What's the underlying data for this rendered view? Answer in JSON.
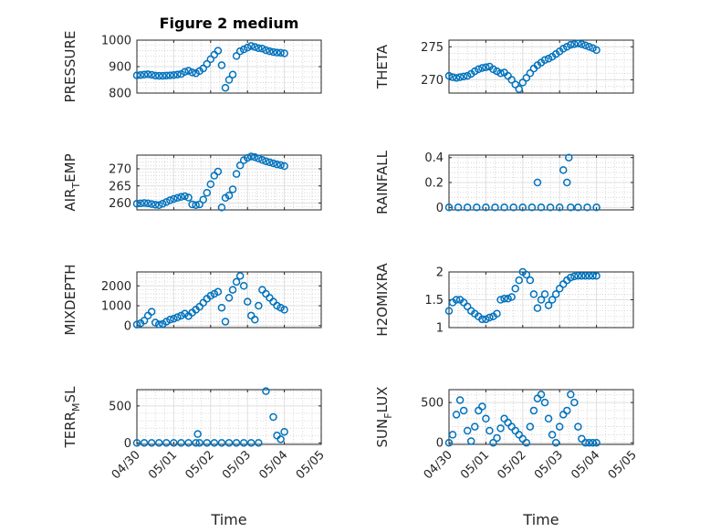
{
  "figure_title": "Figure 2 medium",
  "x_axis_label": "Time",
  "x_ticks": [
    "04/30",
    "05/01",
    "05/02",
    "05/03",
    "05/04",
    "05/05"
  ],
  "marker_color": "#0072BD",
  "chart_data": [
    {
      "type": "scatter",
      "title": "Figure 2 medium",
      "ylabel": "PRESSURE",
      "xlabel": "",
      "xlim": [
        0,
        5
      ],
      "ylim": [
        800,
        1000
      ],
      "yticks": [
        800,
        900,
        1000
      ],
      "grid": true,
      "minor_grid": true,
      "x": [
        0,
        0.1,
        0.2,
        0.3,
        0.4,
        0.5,
        0.6,
        0.7,
        0.8,
        0.9,
        1,
        1.1,
        1.2,
        1.3,
        1.4,
        1.5,
        1.6,
        1.7,
        1.8,
        1.9,
        2,
        2.1,
        2.2,
        2.3,
        2.4,
        2.5,
        2.6,
        2.7,
        2.8,
        2.9,
        3,
        3.1,
        3.2,
        3.3,
        3.4,
        3.5,
        3.6,
        3.7,
        3.8,
        3.9,
        4
      ],
      "y": [
        867,
        868,
        870,
        871,
        869,
        866,
        865,
        865,
        866,
        867,
        868,
        870,
        872,
        880,
        884,
        878,
        875,
        883,
        893,
        910,
        928,
        945,
        960,
        905,
        820,
        850,
        870,
        940,
        958,
        965,
        972,
        978,
        974,
        970,
        968,
        962,
        958,
        955,
        953,
        952,
        950
      ]
    },
    {
      "type": "scatter",
      "title": "",
      "ylabel": "THETA",
      "xlabel": "",
      "xlim": [
        0,
        5
      ],
      "ylim": [
        268,
        276
      ],
      "yticks": [
        270,
        275
      ],
      "grid": true,
      "minor_grid": true,
      "x": [
        0,
        0.1,
        0.2,
        0.3,
        0.4,
        0.5,
        0.6,
        0.7,
        0.8,
        0.9,
        1,
        1.1,
        1.2,
        1.3,
        1.4,
        1.5,
        1.6,
        1.7,
        1.8,
        1.9,
        2,
        2.1,
        2.2,
        2.3,
        2.4,
        2.5,
        2.6,
        2.7,
        2.8,
        2.9,
        3,
        3.1,
        3.2,
        3.3,
        3.4,
        3.5,
        3.6,
        3.7,
        3.8,
        3.9,
        4
      ],
      "y": [
        270.6,
        270.4,
        270.3,
        270.4,
        270.5,
        270.6,
        270.9,
        271.3,
        271.6,
        271.8,
        271.9,
        272.0,
        271.6,
        271.3,
        271.0,
        271.1,
        270.6,
        270.0,
        269.3,
        268.6,
        269.6,
        270.3,
        271.0,
        271.7,
        272.2,
        272.6,
        273.0,
        273.2,
        273.5,
        273.9,
        274.3,
        274.7,
        275.0,
        275.3,
        275.4,
        275.5,
        275.4,
        275.2,
        275.0,
        274.8,
        274.5
      ]
    },
    {
      "type": "scatter",
      "title": "",
      "ylabel": "AIR_TEMP",
      "xlabel": "",
      "xlim": [
        0,
        5
      ],
      "ylim": [
        258,
        274
      ],
      "yticks": [
        260,
        265,
        270
      ],
      "grid": true,
      "minor_grid": true,
      "x": [
        0,
        0.1,
        0.2,
        0.3,
        0.4,
        0.5,
        0.6,
        0.7,
        0.8,
        0.9,
        1,
        1.1,
        1.2,
        1.3,
        1.4,
        1.5,
        1.6,
        1.7,
        1.8,
        1.9,
        2,
        2.1,
        2.2,
        2.3,
        2.4,
        2.5,
        2.6,
        2.7,
        2.8,
        2.9,
        3,
        3.1,
        3.2,
        3.3,
        3.4,
        3.5,
        3.6,
        3.7,
        3.8,
        3.9,
        4
      ],
      "y": [
        259.8,
        259.9,
        260.0,
        259.9,
        259.7,
        259.5,
        259.4,
        259.8,
        260.3,
        260.8,
        261.2,
        261.5,
        261.8,
        262.0,
        261.6,
        259.6,
        259.4,
        259.6,
        261.0,
        263.0,
        265.5,
        268.0,
        269.2,
        258.7,
        261.5,
        262.2,
        264.0,
        268.5,
        271.0,
        272.5,
        273.2,
        273.6,
        273.4,
        273.0,
        272.6,
        272.2,
        271.9,
        271.6,
        271.3,
        271.1,
        270.8
      ]
    },
    {
      "type": "scatter",
      "title": "",
      "ylabel": "RAINFALL",
      "xlabel": "",
      "xlim": [
        0,
        5
      ],
      "ylim": [
        -0.02,
        0.42
      ],
      "yticks": [
        0,
        0.2,
        0.4
      ],
      "grid": true,
      "minor_grid": true,
      "x": [
        0,
        0.25,
        0.5,
        0.75,
        1,
        1.25,
        1.5,
        1.75,
        2,
        2.25,
        2.4,
        2.5,
        2.75,
        3,
        3.1,
        3.2,
        3.25,
        3.3,
        3.5,
        3.75,
        4
      ],
      "y": [
        0,
        0,
        0,
        0,
        0,
        0,
        0,
        0,
        0,
        0,
        0.2,
        0,
        0,
        0,
        0.3,
        0.2,
        0.4,
        0,
        0,
        0,
        0
      ]
    },
    {
      "type": "scatter",
      "title": "",
      "ylabel": "MIXDEPTH",
      "xlabel": "",
      "xlim": [
        0,
        5
      ],
      "ylim": [
        -100,
        2700
      ],
      "yticks": [
        0,
        1000,
        2000
      ],
      "grid": true,
      "minor_grid": true,
      "x": [
        0,
        0.1,
        0.2,
        0.3,
        0.4,
        0.5,
        0.6,
        0.7,
        0.8,
        0.9,
        1,
        1.1,
        1.2,
        1.3,
        1.4,
        1.5,
        1.6,
        1.7,
        1.8,
        1.9,
        2,
        2.1,
        2.2,
        2.3,
        2.4,
        2.5,
        2.6,
        2.7,
        2.8,
        2.9,
        3,
        3.1,
        3.2,
        3.3,
        3.4,
        3.5,
        3.6,
        3.7,
        3.8,
        3.9,
        4
      ],
      "y": [
        50,
        120,
        250,
        500,
        700,
        150,
        60,
        80,
        200,
        300,
        350,
        420,
        500,
        600,
        480,
        650,
        800,
        950,
        1150,
        1350,
        1500,
        1600,
        1700,
        900,
        200,
        1400,
        1800,
        2200,
        2500,
        2000,
        1200,
        500,
        300,
        1000,
        1800,
        1600,
        1400,
        1200,
        1000,
        900,
        800
      ]
    },
    {
      "type": "scatter",
      "title": "",
      "ylabel": "H2OMIXRA",
      "xlabel": "",
      "xlim": [
        0,
        5
      ],
      "ylim": [
        1,
        2
      ],
      "yticks": [
        1,
        1.5,
        2
      ],
      "grid": true,
      "minor_grid": true,
      "x": [
        0,
        0.1,
        0.2,
        0.3,
        0.4,
        0.5,
        0.6,
        0.7,
        0.8,
        0.9,
        1,
        1.1,
        1.2,
        1.3,
        1.4,
        1.5,
        1.6,
        1.7,
        1.8,
        1.9,
        2,
        2.1,
        2.2,
        2.3,
        2.4,
        2.5,
        2.6,
        2.7,
        2.8,
        2.9,
        3,
        3.1,
        3.2,
        3.3,
        3.4,
        3.5,
        3.6,
        3.7,
        3.8,
        3.9,
        4
      ],
      "y": [
        1.3,
        1.45,
        1.5,
        1.5,
        1.45,
        1.38,
        1.3,
        1.25,
        1.2,
        1.15,
        1.15,
        1.18,
        1.2,
        1.25,
        1.5,
        1.52,
        1.52,
        1.55,
        1.7,
        1.85,
        2.0,
        1.95,
        1.85,
        1.6,
        1.35,
        1.5,
        1.6,
        1.4,
        1.5,
        1.6,
        1.7,
        1.78,
        1.85,
        1.9,
        1.92,
        1.93,
        1.93,
        1.93,
        1.93,
        1.93,
        1.93
      ]
    },
    {
      "type": "scatter",
      "title": "",
      "ylabel": "TERR_MSL",
      "xlabel": "Time",
      "xlim": [
        0,
        5
      ],
      "ylim": [
        -20,
        720
      ],
      "yticks": [
        0,
        500
      ],
      "grid": true,
      "minor_grid": true,
      "x": [
        0,
        0.2,
        0.4,
        0.6,
        0.8,
        1,
        1.2,
        1.4,
        1.6,
        1.65,
        1.7,
        1.9,
        2.1,
        2.3,
        2.5,
        2.7,
        2.9,
        3.1,
        3.3,
        3.5,
        3.7,
        3.8,
        3.9,
        4
      ],
      "y": [
        0,
        0,
        0,
        0,
        0,
        0,
        0,
        0,
        0,
        120,
        0,
        0,
        0,
        0,
        0,
        0,
        0,
        0,
        0,
        700,
        350,
        100,
        50,
        150
      ]
    },
    {
      "type": "scatter",
      "title": "",
      "ylabel": "SUN_FLUX",
      "xlabel": "Time",
      "xlim": [
        0,
        5
      ],
      "ylim": [
        -20,
        660
      ],
      "yticks": [
        0,
        500
      ],
      "grid": true,
      "minor_grid": true,
      "x": [
        0,
        0.1,
        0.2,
        0.3,
        0.4,
        0.5,
        0.6,
        0.7,
        0.8,
        0.9,
        1,
        1.1,
        1.2,
        1.3,
        1.4,
        1.5,
        1.6,
        1.7,
        1.8,
        1.9,
        2,
        2.1,
        2.2,
        2.3,
        2.4,
        2.5,
        2.6,
        2.7,
        2.8,
        2.9,
        3,
        3.1,
        3.2,
        3.3,
        3.4,
        3.5,
        3.6,
        3.7,
        3.8,
        3.9,
        4
      ],
      "y": [
        0,
        100,
        350,
        530,
        400,
        150,
        20,
        200,
        400,
        450,
        300,
        150,
        0,
        60,
        180,
        300,
        250,
        200,
        150,
        100,
        50,
        0,
        200,
        400,
        550,
        600,
        500,
        300,
        100,
        0,
        200,
        350,
        400,
        600,
        500,
        200,
        50,
        0,
        0,
        0,
        0
      ]
    }
  ]
}
